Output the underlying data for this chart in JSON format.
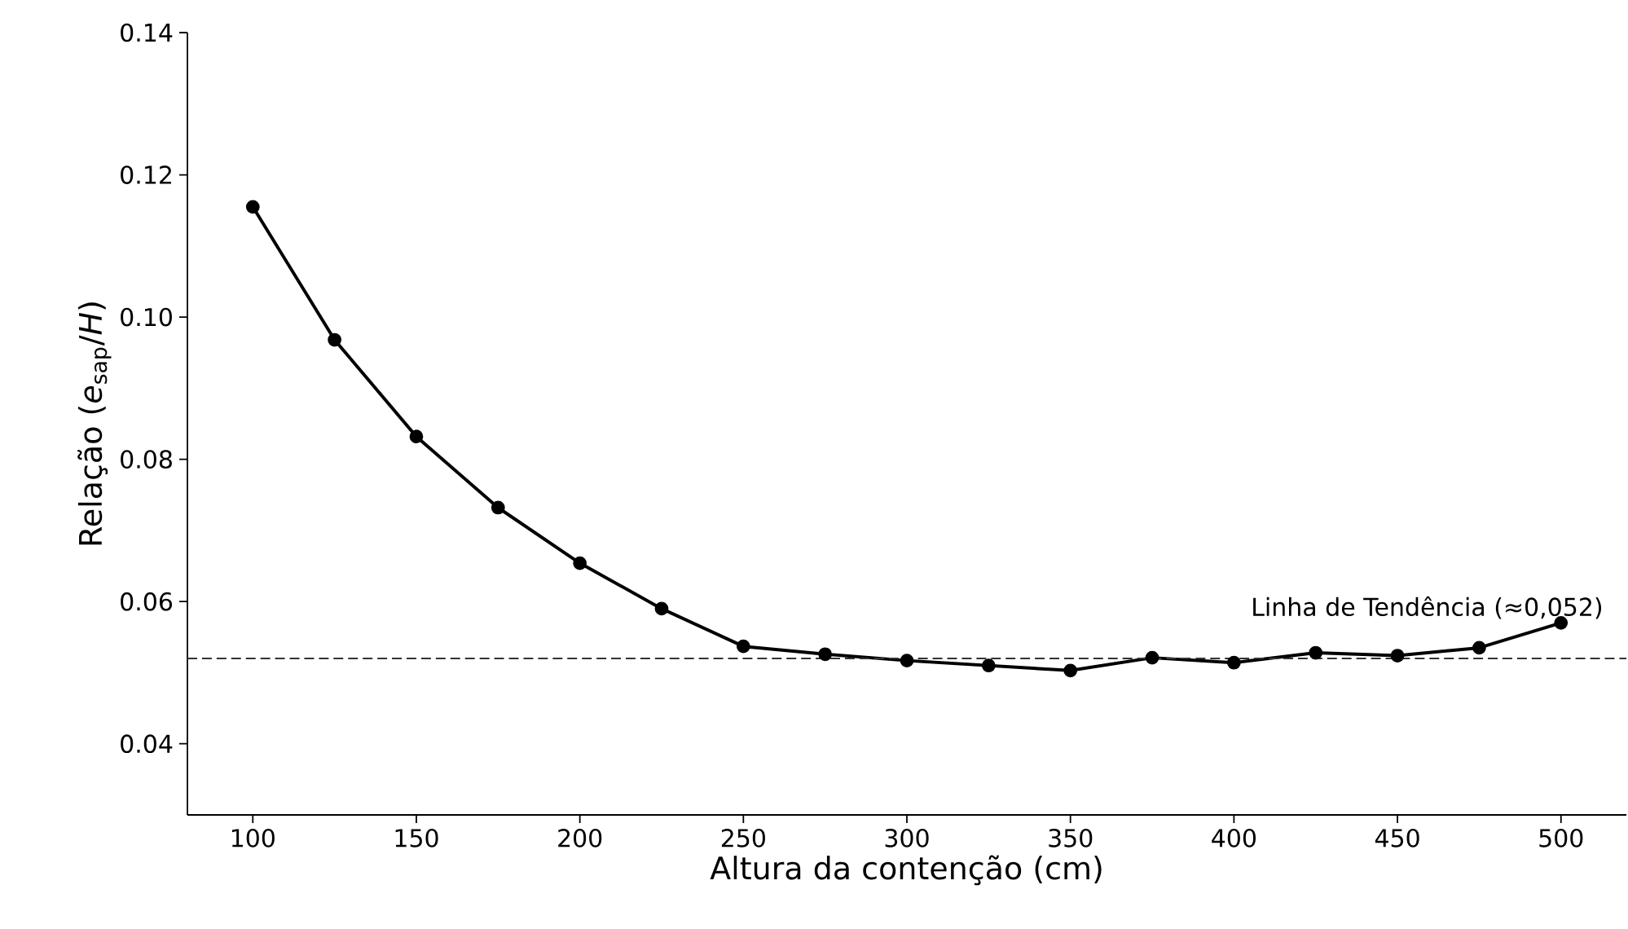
{
  "chart_data": {
    "type": "line",
    "xlabel": "Altura da contenção (cm)",
    "ylabel": "Relação (*e*$_{sap}$/*H*)",
    "x": [
      100,
      125,
      150,
      175,
      200,
      225,
      250,
      275,
      300,
      325,
      350,
      375,
      400,
      425,
      450,
      475,
      500
    ],
    "series": [
      {
        "color": "#000000",
        "values": [
          0.1155,
          0.0968,
          0.0832,
          0.0732,
          0.0654,
          0.059,
          0.0537,
          0.0526,
          0.0517,
          0.051,
          0.0503,
          0.0521,
          0.0514,
          0.0528,
          0.0524,
          0.0535,
          0.057
        ]
      }
    ],
    "xlim": [
      80,
      520
    ],
    "ylim": [
      0.03,
      0.14
    ],
    "xticks": [
      100,
      150,
      200,
      250,
      300,
      350,
      400,
      450,
      500
    ],
    "yticks": [
      {
        "value": 0.04,
        "label": "0.04"
      },
      {
        "value": 0.06,
        "label": "0.06"
      },
      {
        "value": 0.08,
        "label": "0.08"
      },
      {
        "value": 0.1,
        "label": "0.10"
      },
      {
        "value": 0.12,
        "label": "0.12"
      },
      {
        "value": 0.14,
        "label": "0.14"
      }
    ],
    "ref_lines": [
      {
        "axis": "y",
        "value": 0.052,
        "label": "Linha de Tendência (≈0,052)",
        "color": "#333333",
        "line_style": "dashed"
      }
    ],
    "marker": "circle",
    "line_style": "solid",
    "grid": false
  }
}
